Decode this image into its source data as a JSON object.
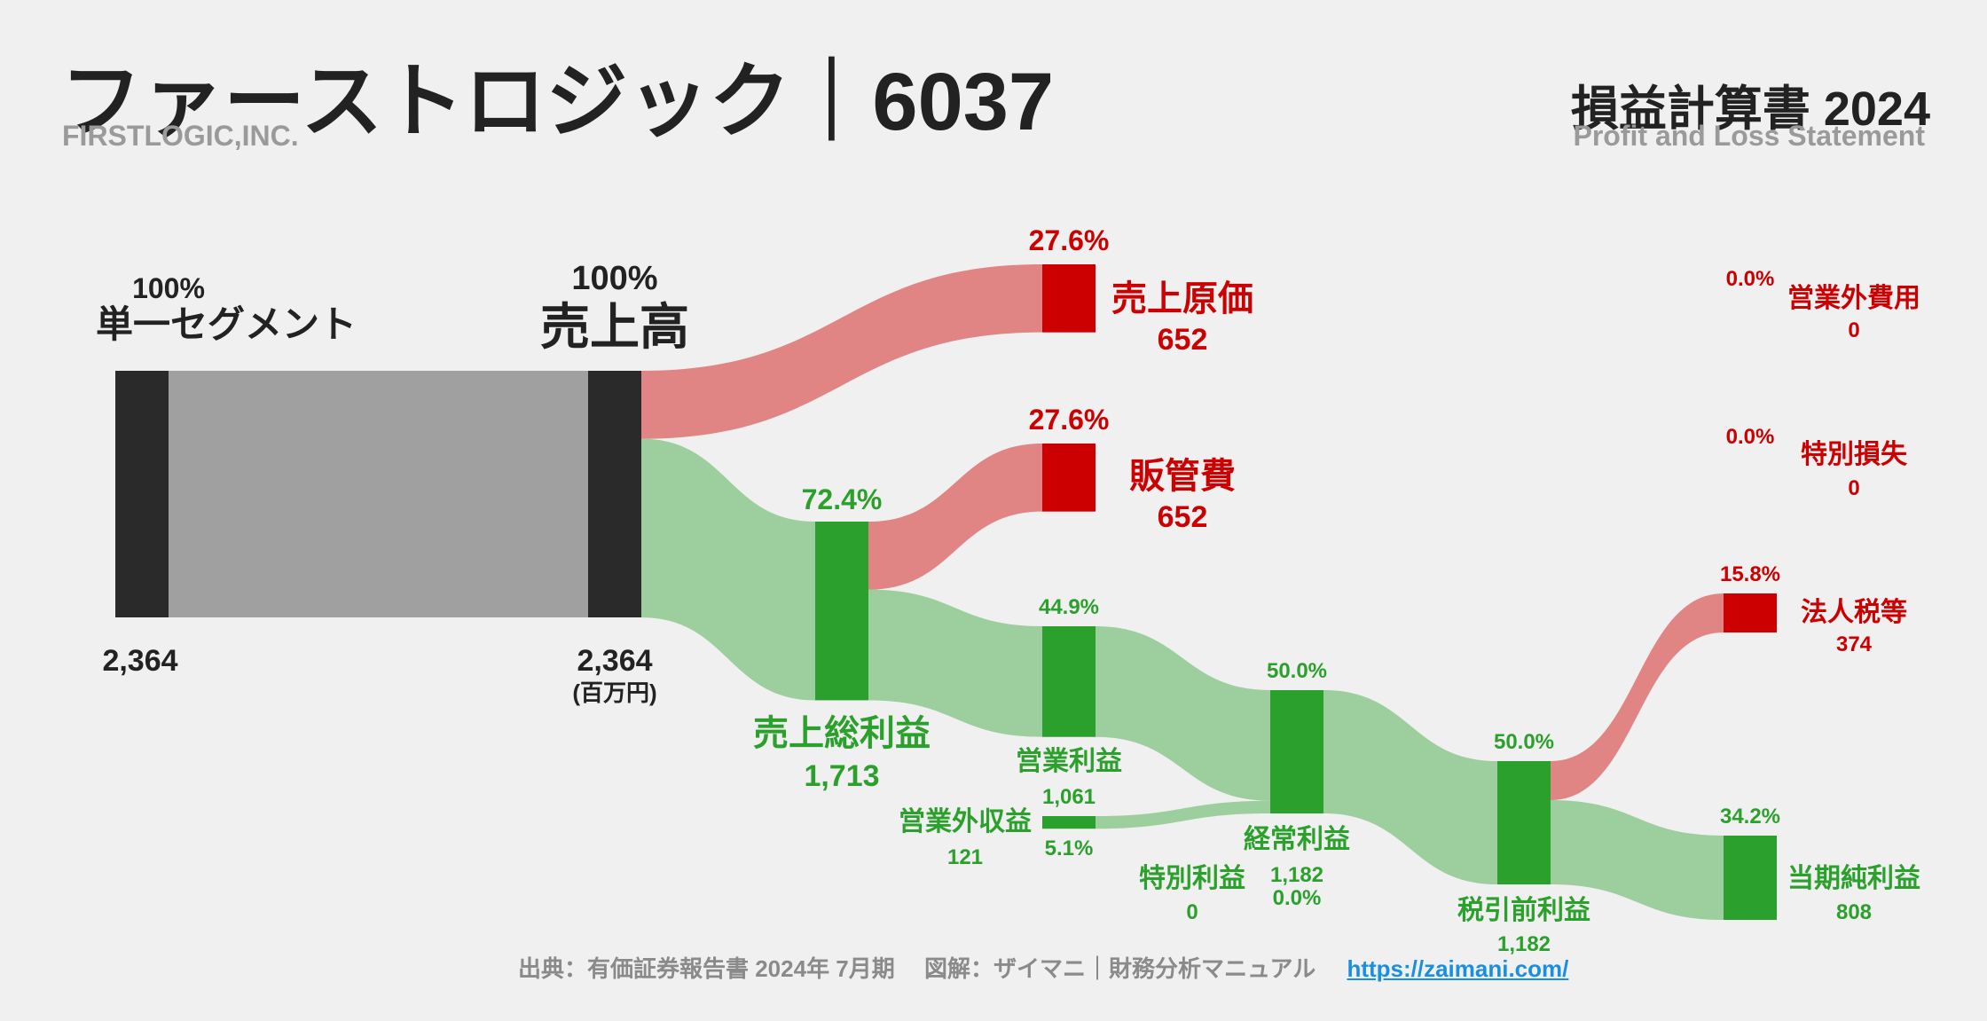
{
  "header": {
    "title": "ファーストロジック｜6037",
    "subtitle": "FIRSTLOGIC,INC.",
    "statement_title": "損益計算書 2024",
    "statement_subtitle": "Profit and Loss Statement"
  },
  "footer": {
    "source": "出典：有価証券報告書 2024年 7月期　 図解：ザイマニ｜財務分析マニュアル",
    "url": "https://zaimani.com/"
  },
  "colors": {
    "profit": "#2ca02c",
    "cost": "#cc0000",
    "segment": "#2a2a2a",
    "neutral": "#a0a0a0"
  },
  "chart_data": {
    "type": "sankey",
    "unit": "(百万円)",
    "nodes": [
      {
        "id": "segment",
        "name": "単一セグメント",
        "value": 2364,
        "value_label": "2,364",
        "pct": "100%"
      },
      {
        "id": "revenue",
        "name": "売上高",
        "value": 2364,
        "value_label": "2,364",
        "pct": "100%"
      },
      {
        "id": "cogs",
        "name": "売上原価",
        "value": 652,
        "value_label": "652",
        "pct": "27.6%"
      },
      {
        "id": "gross",
        "name": "売上総利益",
        "value": 1713,
        "value_label": "1,713",
        "pct": "72.4%"
      },
      {
        "id": "sga",
        "name": "販管費",
        "value": 652,
        "value_label": "652",
        "pct": "27.6%"
      },
      {
        "id": "op",
        "name": "営業利益",
        "value": 1061,
        "value_label": "1,061",
        "pct": "44.9%"
      },
      {
        "id": "nonop_inc",
        "name": "営業外収益",
        "value": 121,
        "value_label": "121",
        "pct": "5.1%"
      },
      {
        "id": "nonop_exp",
        "name": "営業外費用",
        "value": 0,
        "value_label": "0",
        "pct": "0.0%"
      },
      {
        "id": "ordinary",
        "name": "経常利益",
        "value": 1182,
        "value_label": "1,182",
        "pct": "50.0%"
      },
      {
        "id": "special_gain",
        "name": "特別利益",
        "value": 0,
        "value_label": "0",
        "pct": "0.0%"
      },
      {
        "id": "special_loss",
        "name": "特別損失",
        "value": 0,
        "value_label": "0",
        "pct": "0.0%"
      },
      {
        "id": "pretax",
        "name": "税引前利益",
        "value": 1182,
        "value_label": "1,182",
        "pct": "50.0%"
      },
      {
        "id": "tax",
        "name": "法人税等",
        "value": 374,
        "value_label": "374",
        "pct": "15.8%"
      },
      {
        "id": "net",
        "name": "当期純利益",
        "value": 808,
        "value_label": "808",
        "pct": "34.2%"
      }
    ],
    "links": [
      {
        "source": "segment",
        "target": "revenue",
        "value": 2364
      },
      {
        "source": "revenue",
        "target": "cogs",
        "value": 652
      },
      {
        "source": "revenue",
        "target": "gross",
        "value": 1713
      },
      {
        "source": "gross",
        "target": "sga",
        "value": 652
      },
      {
        "source": "gross",
        "target": "op",
        "value": 1061
      },
      {
        "source": "op",
        "target": "ordinary",
        "value": 1061
      },
      {
        "source": "nonop_inc",
        "target": "ordinary",
        "value": 121
      },
      {
        "source": "ordinary",
        "target": "pretax",
        "value": 1182
      },
      {
        "source": "pretax",
        "target": "tax",
        "value": 374
      },
      {
        "source": "pretax",
        "target": "net",
        "value": 808
      }
    ]
  }
}
